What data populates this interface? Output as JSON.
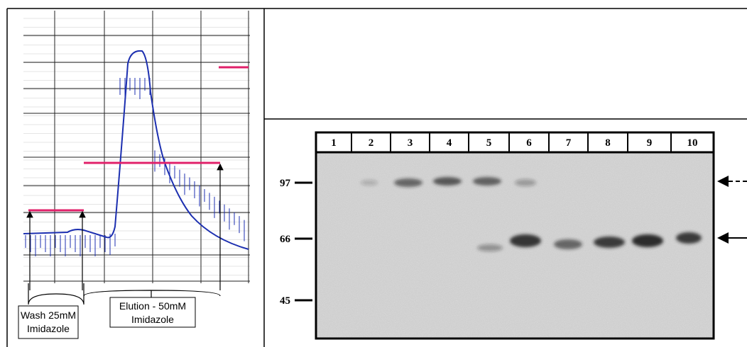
{
  "chromatogram": {
    "wash_label": [
      "Wash 25mM",
      "Imidazole"
    ],
    "elution_label": [
      "Elution - 50mM",
      "Imidazole"
    ]
  },
  "gel": {
    "lanes": [
      "1",
      "2",
      "3",
      "4",
      "5",
      "6",
      "7",
      "8",
      "9",
      "10"
    ],
    "markers": [
      "97",
      "66",
      "45"
    ]
  }
}
